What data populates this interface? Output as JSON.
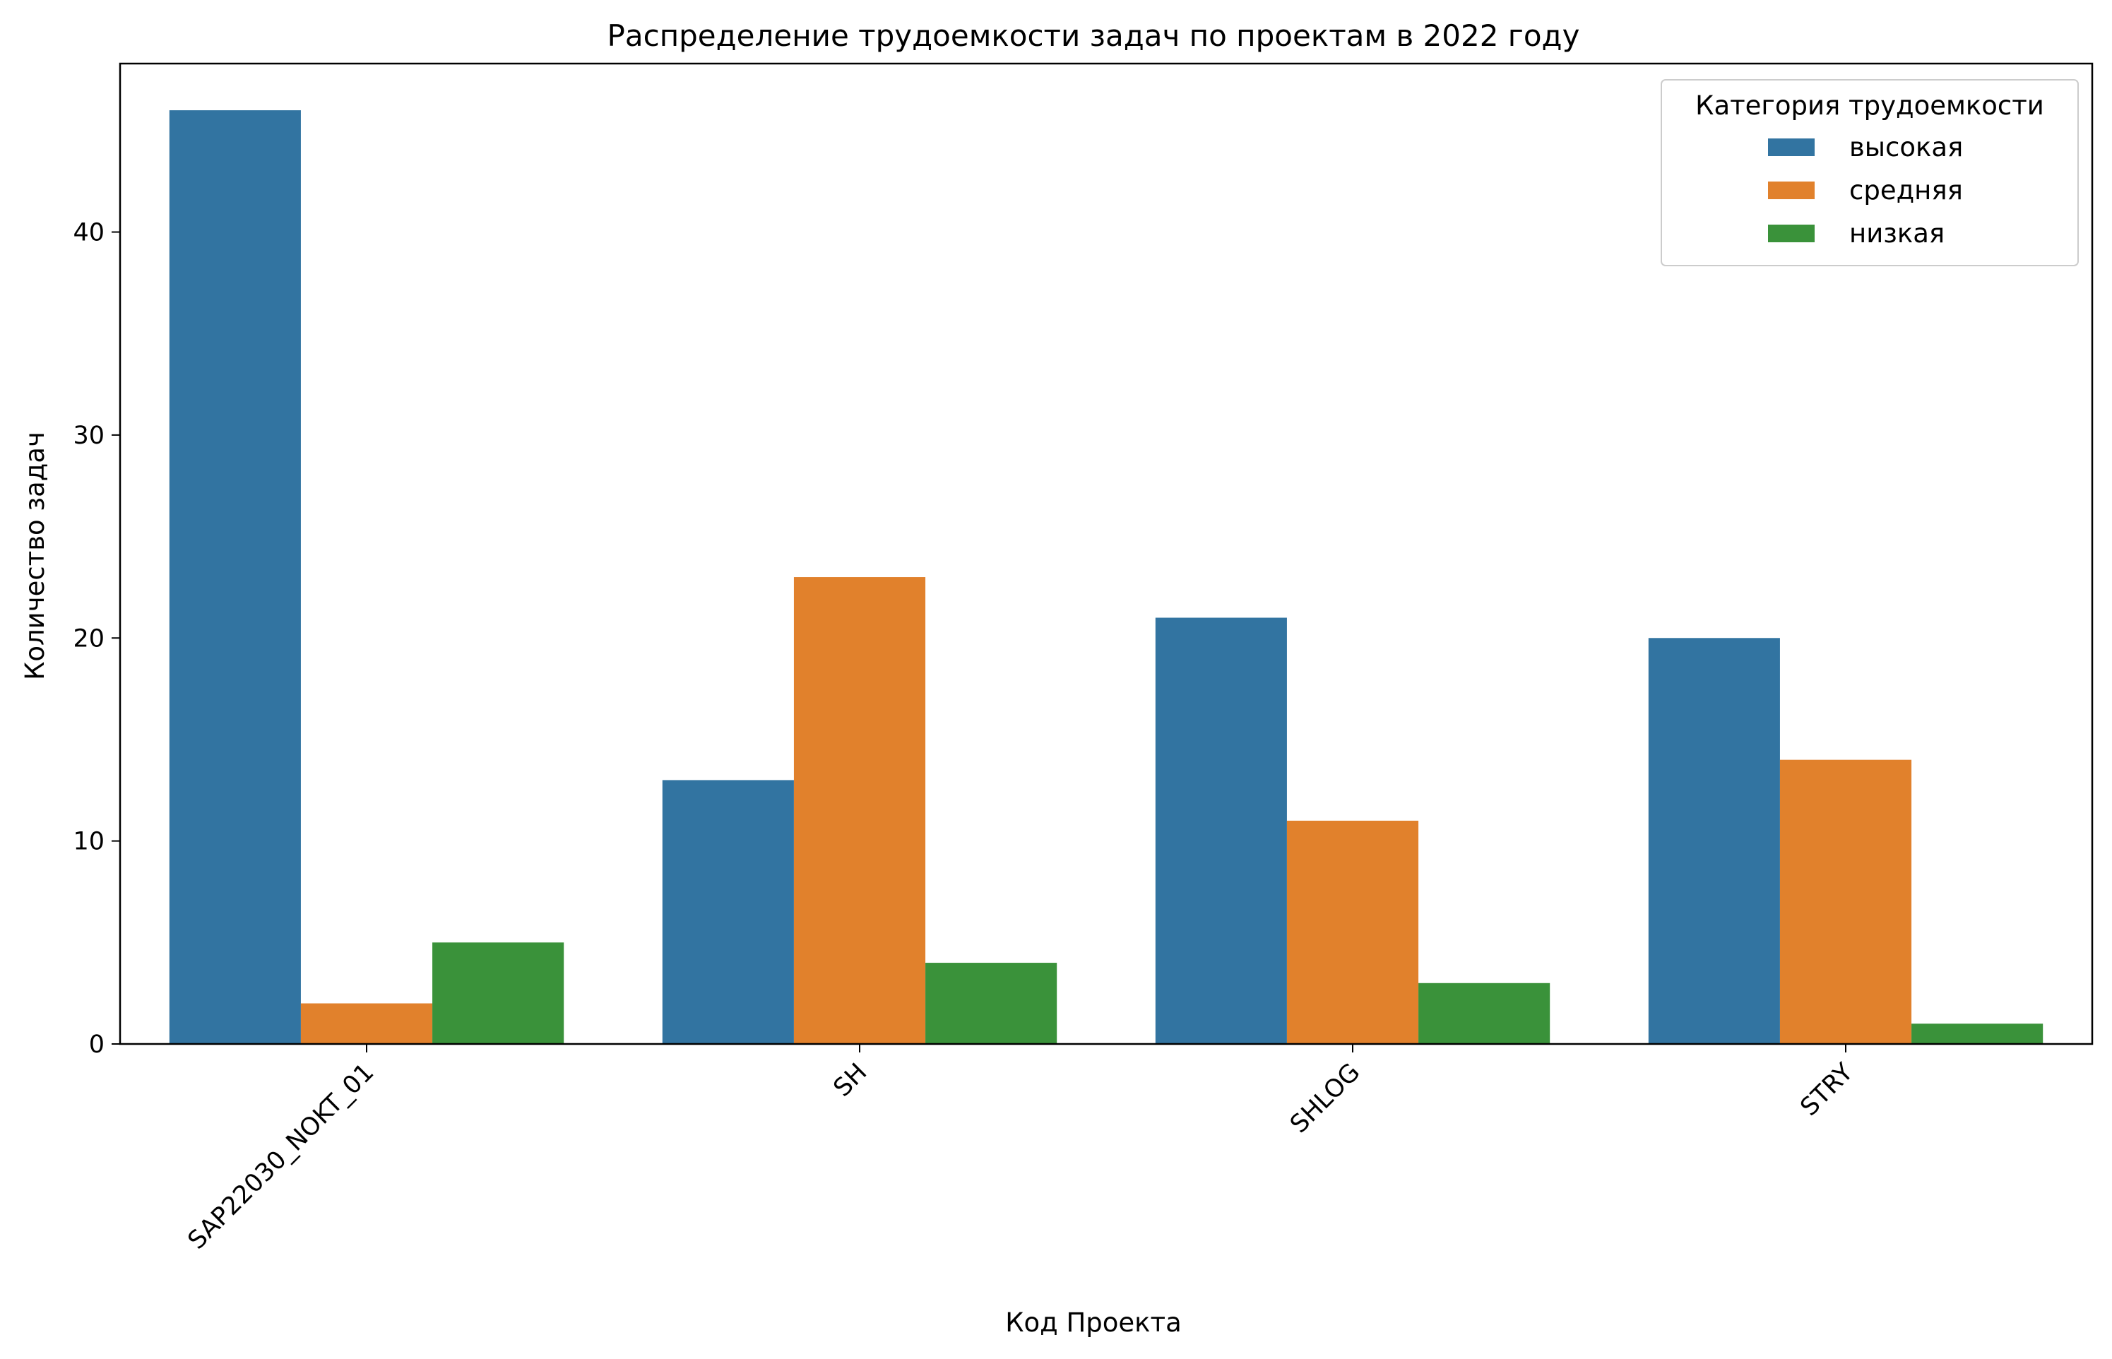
{
  "chart_data": {
    "type": "bar",
    "title": "Распределение трудоемкости задач по проектам в 2022 году",
    "xlabel": "Код Проекта",
    "ylabel": "Количество задач",
    "categories": [
      "SAP22030_NOKT_01",
      "SH",
      "SHLOG",
      "STRY"
    ],
    "series": [
      {
        "name": "высокая",
        "color": "#3274a1",
        "values": [
          46,
          13,
          21,
          20
        ]
      },
      {
        "name": "средняя",
        "color": "#e1812c",
        "values": [
          2,
          23,
          11,
          14
        ]
      },
      {
        "name": "низкая",
        "color": "#3a923a",
        "values": [
          5,
          4,
          3,
          1
        ]
      }
    ],
    "ylim": [
      0,
      48.3
    ],
    "yticks": [
      0,
      10,
      20,
      30,
      40
    ],
    "grid": false,
    "legend": {
      "title": "Категория трудоемкости",
      "placement": "top-right"
    }
  }
}
